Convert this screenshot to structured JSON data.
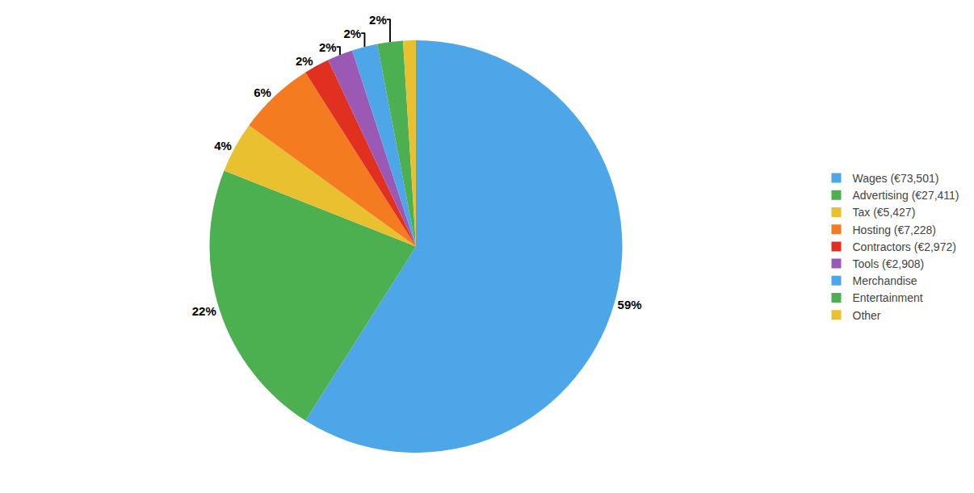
{
  "chart_data": {
    "type": "pie",
    "categories": [
      "Wages (€73,501)",
      "Advertising (€27,411)",
      "Tax (€5,427)",
      "Hosting (€7,228)",
      "Contractors (€2,972)",
      "Tools (€2,908)",
      "Merchandise",
      "Entertainment",
      "Other"
    ],
    "values": [
      59,
      22,
      4,
      6,
      2,
      2,
      2,
      2,
      1
    ],
    "value_labels": [
      "59%",
      "22%",
      "4%",
      "6%",
      "2%",
      "2%",
      "2%",
      "2%",
      null
    ],
    "colors": [
      "#4DA6E8",
      "#4CAF50",
      "#E8C030",
      "#F47B20",
      "#E03020",
      "#9B59B6",
      "#4DA6E8",
      "#4CAF50",
      "#E8C030"
    ],
    "data_labels": true,
    "legend": "right"
  }
}
